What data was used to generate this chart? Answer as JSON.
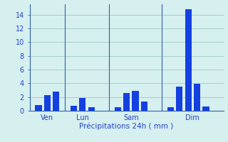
{
  "bars": [
    {
      "x": 1,
      "height": 0.8
    },
    {
      "x": 2,
      "height": 2.3
    },
    {
      "x": 3,
      "height": 2.8
    },
    {
      "x": 5,
      "height": 0.7
    },
    {
      "x": 6,
      "height": 1.9
    },
    {
      "x": 7,
      "height": 0.5
    },
    {
      "x": 10,
      "height": 0.5
    },
    {
      "x": 11,
      "height": 2.6
    },
    {
      "x": 12,
      "height": 2.9
    },
    {
      "x": 13,
      "height": 1.3
    },
    {
      "x": 16,
      "height": 0.5
    },
    {
      "x": 17,
      "height": 3.5
    },
    {
      "x": 18,
      "height": 14.8
    },
    {
      "x": 19,
      "height": 3.9
    },
    {
      "x": 20,
      "height": 0.6
    }
  ],
  "day_labels": [
    {
      "x": 2.0,
      "label": "Ven"
    },
    {
      "x": 6.0,
      "label": "Lun"
    },
    {
      "x": 11.5,
      "label": "Sam"
    },
    {
      "x": 18.5,
      "label": "Dim"
    }
  ],
  "vlines": [
    4.0,
    9.0,
    15.0
  ],
  "xlabel": "Précipitations 24h ( mm )",
  "ylim": [
    0,
    15.5
  ],
  "yticks": [
    0,
    2,
    4,
    6,
    8,
    10,
    12,
    14
  ],
  "xlim": [
    0,
    22
  ],
  "bar_width": 0.75,
  "background_color": "#d6efef",
  "grid_color": "#a0c8c8",
  "bar_color": "#1440e0",
  "axis_color": "#3060b0",
  "label_color": "#2244cc",
  "tick_fontsize": 7,
  "xlabel_fontsize": 7.5
}
